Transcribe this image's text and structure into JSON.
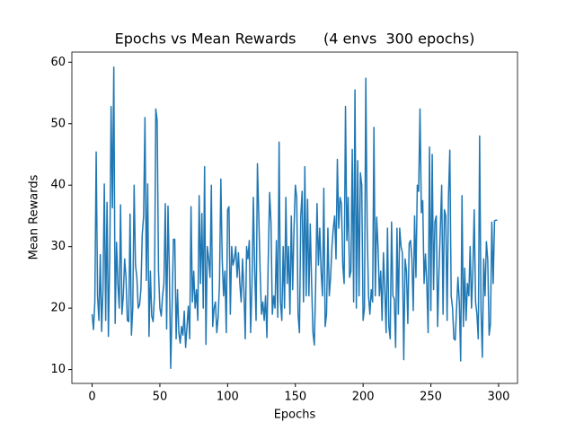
{
  "chart_data": {
    "type": "line",
    "title": "Epochs vs Mean Rewards      (4 envs  300 epochs)",
    "x_label": "Epochs",
    "y_label": "Mean Rewards",
    "color": "#1f77b4",
    "x": [
      0,
      1,
      2,
      3,
      4,
      5,
      6,
      7,
      8,
      9,
      10,
      11,
      12,
      13,
      14,
      15,
      16,
      17,
      18,
      19,
      20,
      21,
      22,
      23,
      24,
      25,
      26,
      27,
      28,
      29,
      30,
      31,
      32,
      33,
      34,
      35,
      36,
      37,
      38,
      39,
      40,
      41,
      42,
      43,
      44,
      45,
      46,
      47,
      48,
      49,
      50,
      51,
      52,
      53,
      54,
      55,
      56,
      57,
      58,
      59,
      60,
      61,
      62,
      63,
      64,
      65,
      66,
      67,
      68,
      69,
      70,
      71,
      72,
      73,
      74,
      75,
      76,
      77,
      78,
      79,
      80,
      81,
      82,
      83,
      84,
      85,
      86,
      87,
      88,
      89,
      90,
      91,
      92,
      93,
      94,
      95,
      96,
      97,
      98,
      99,
      100,
      101,
      102,
      103,
      104,
      105,
      106,
      107,
      108,
      109,
      110,
      111,
      112,
      113,
      114,
      115,
      116,
      117,
      118,
      119,
      120,
      121,
      122,
      123,
      124,
      125,
      126,
      127,
      128,
      129,
      130,
      131,
      132,
      133,
      134,
      135,
      136,
      137,
      138,
      139,
      140,
      141,
      142,
      143,
      144,
      145,
      146,
      147,
      148,
      149,
      150,
      151,
      152,
      153,
      154,
      155,
      156,
      157,
      158,
      159,
      160,
      161,
      162,
      163,
      164,
      165,
      166,
      167,
      168,
      169,
      170,
      171,
      172,
      173,
      174,
      175,
      176,
      177,
      178,
      179,
      180,
      181,
      182,
      183,
      184,
      185,
      186,
      187,
      188,
      189,
      190,
      191,
      192,
      193,
      194,
      195,
      196,
      197,
      198,
      199,
      200,
      201,
      202,
      203,
      204,
      205,
      206,
      207,
      208,
      209,
      210,
      211,
      212,
      213,
      214,
      215,
      216,
      217,
      218,
      219,
      220,
      221,
      222,
      223,
      224,
      225,
      226,
      227,
      228,
      229,
      230,
      231,
      232,
      233,
      234,
      235,
      236,
      237,
      238,
      239,
      240,
      241,
      242,
      243,
      244,
      245,
      246,
      247,
      248,
      249,
      250,
      251,
      252,
      253,
      254,
      255,
      256,
      257,
      258,
      259,
      260,
      261,
      262,
      263,
      264,
      265,
      266,
      267,
      268,
      269,
      270,
      271,
      272,
      273,
      274,
      275,
      276,
      277,
      278,
      279,
      280,
      281,
      282,
      283,
      284,
      285,
      286,
      287,
      288,
      289,
      290,
      291,
      292,
      293,
      294,
      295,
      296,
      297,
      298,
      299
    ],
    "values": [
      19,
      16.5,
      21,
      45.4,
      22,
      18,
      28.7,
      16.2,
      23,
      40.2,
      18,
      37.2,
      15.4,
      28,
      52.8,
      36.3,
      59.2,
      17.5,
      30.7,
      24,
      20,
      36.8,
      19,
      22,
      28,
      25,
      18,
      17.8,
      35.3,
      15.6,
      20,
      40,
      27,
      25,
      20,
      20.5,
      23,
      32,
      35,
      51,
      24.5,
      40.2,
      15.4,
      26,
      18.7,
      17.8,
      22,
      52.4,
      50.5,
      26,
      20,
      18.7,
      22,
      24,
      37,
      16.6,
      36.6,
      26,
      10.2,
      20,
      31.2,
      31.2,
      15,
      23,
      16,
      14.3,
      17,
      15.6,
      19.5,
      13.6,
      17,
      20.3,
      15,
      36.5,
      21,
      26,
      20,
      23,
      18,
      38.3,
      24,
      35.4,
      20,
      43,
      14.1,
      30,
      28,
      25,
      40,
      17,
      20,
      21,
      16,
      18.5,
      24,
      41,
      28,
      22,
      26,
      16,
      36,
      36.5,
      19,
      30,
      27,
      28,
      30,
      25,
      29,
      24,
      21,
      28,
      23,
      15,
      30,
      28,
      31,
      16,
      24,
      38,
      26,
      18,
      43.5,
      35,
      26,
      19,
      21,
      18,
      22,
      15.2,
      28,
      38.8,
      34,
      19,
      22,
      20,
      31,
      18.5,
      47,
      21,
      18,
      30,
      20,
      38,
      24,
      30,
      19,
      35,
      23,
      33,
      40,
      38,
      19,
      16,
      35,
      39,
      21,
      43,
      22,
      37.7,
      22,
      33.7,
      24,
      16,
      14,
      24,
      37,
      27,
      33,
      26,
      22,
      39.5,
      17,
      19,
      33,
      22,
      25,
      30,
      33,
      35,
      28,
      44.2,
      33,
      38,
      37,
      27,
      24,
      52.8,
      31,
      38,
      25,
      26,
      45.8,
      21,
      55.5,
      20,
      44,
      22,
      42,
      40,
      18,
      20,
      57.4,
      33,
      22,
      19,
      23,
      21,
      49.4,
      22,
      34.8,
      30,
      22,
      26,
      18,
      29,
      23,
      16,
      33,
      17,
      15,
      34,
      22,
      21.5,
      13.6,
      33,
      19,
      33,
      30,
      29,
      11.6,
      28,
      26,
      17.5,
      30.5,
      31,
      28,
      19.6,
      35,
      25,
      40,
      39,
      52.4,
      35.5,
      37.5,
      24,
      28.8,
      24,
      16,
      46.2,
      19.6,
      45,
      23,
      34,
      35,
      17,
      26,
      33,
      40,
      19,
      36,
      35,
      18,
      38,
      45.7,
      22,
      20,
      15,
      14.8,
      20,
      25,
      21,
      11.4,
      38.3,
      17,
      26.5,
      18,
      24,
      22,
      30,
      20,
      26,
      36,
      21,
      19,
      15,
      48,
      20,
      12,
      28,
      22,
      30.8,
      27.8,
      15.6,
      17.5,
      34,
      24,
      34.2,
      34.3,
      34.3
    ],
    "xlim": [
      -14.95,
      313.95
    ],
    "xticks": [
      0,
      50,
      100,
      150,
      200,
      250,
      300
    ],
    "ylim": [
      7.75,
      61.65
    ],
    "yticks": [
      10,
      20,
      30,
      40,
      50,
      60
    ]
  }
}
